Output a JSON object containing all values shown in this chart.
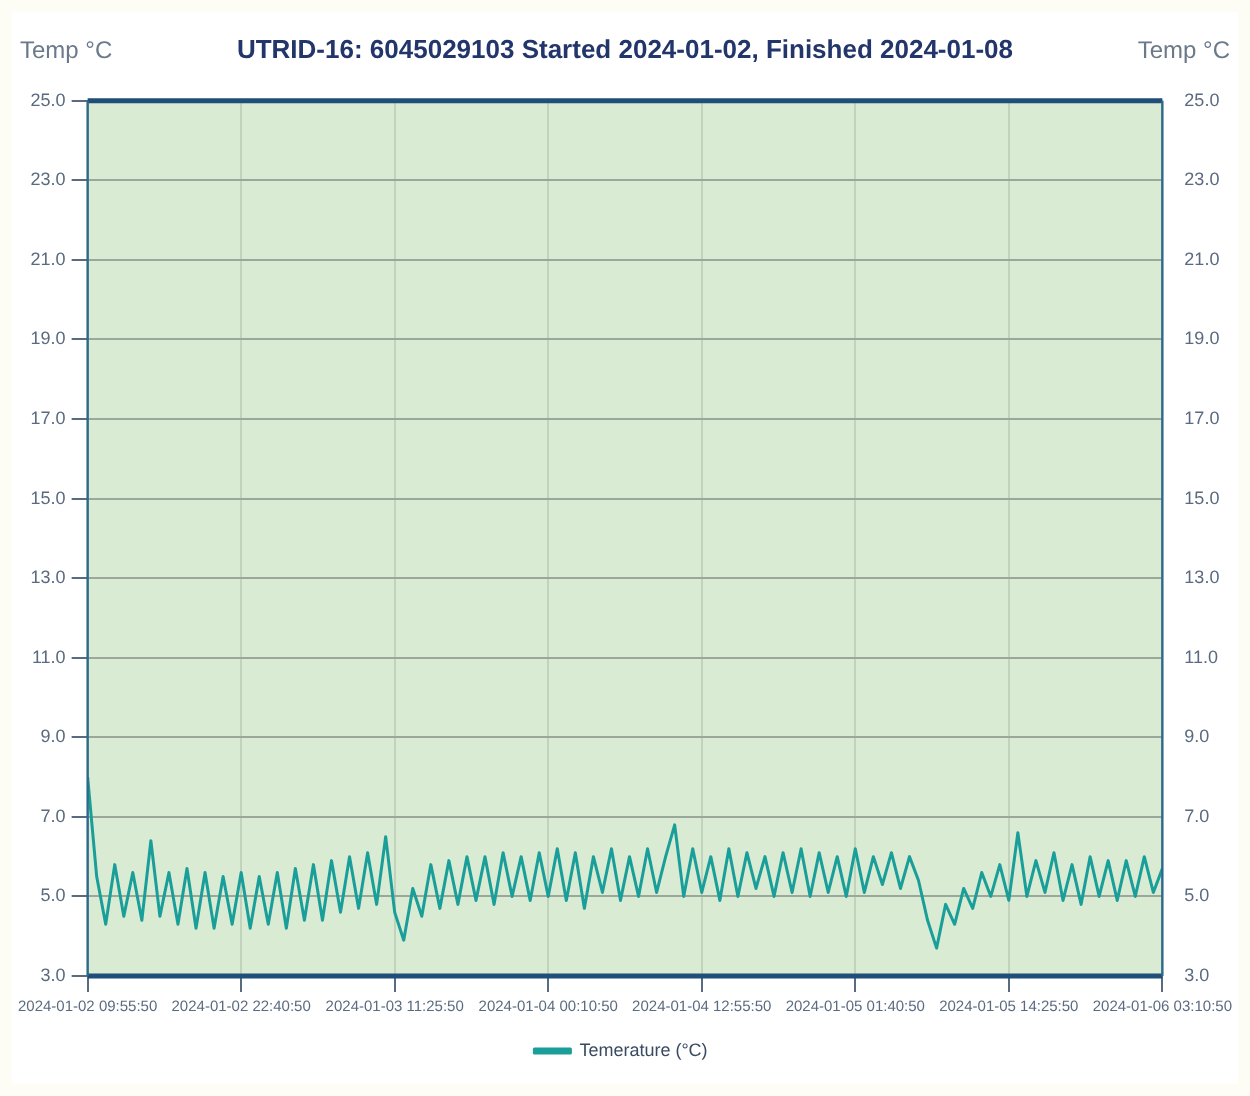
{
  "chart_data": {
    "type": "line",
    "title": "UTRID-16: 6045029103 Started 2024-01-02, Finished 2024-01-08",
    "ylabel": "Temp °C",
    "y2label": "Temp °C",
    "x": [
      "2024-01-02T09:55:50",
      "2024-01-02T10:40:50",
      "2024-01-02T11:25:50",
      "2024-01-02T12:10:50",
      "2024-01-02T12:55:50",
      "2024-01-02T13:40:50",
      "2024-01-02T14:25:50",
      "2024-01-02T15:10:50",
      "2024-01-02T15:55:50",
      "2024-01-02T16:40:50",
      "2024-01-02T17:25:50",
      "2024-01-02T18:10:50",
      "2024-01-02T18:55:50",
      "2024-01-02T19:40:50",
      "2024-01-02T20:25:50",
      "2024-01-02T21:10:50",
      "2024-01-02T21:55:50",
      "2024-01-02T22:40:50",
      "2024-01-02T23:25:50",
      "2024-01-03T00:10:50",
      "2024-01-03T00:55:50",
      "2024-01-03T01:40:50",
      "2024-01-03T02:25:50",
      "2024-01-03T03:10:50",
      "2024-01-03T03:55:50",
      "2024-01-03T04:40:50",
      "2024-01-03T05:25:50",
      "2024-01-03T06:10:50",
      "2024-01-03T06:55:50",
      "2024-01-03T07:40:50",
      "2024-01-03T08:25:50",
      "2024-01-03T09:10:50",
      "2024-01-03T09:55:50",
      "2024-01-03T10:40:50",
      "2024-01-03T11:25:50",
      "2024-01-03T12:10:50",
      "2024-01-03T12:55:50",
      "2024-01-03T13:40:50",
      "2024-01-03T14:25:50",
      "2024-01-03T15:10:50",
      "2024-01-03T15:55:50",
      "2024-01-03T16:40:50",
      "2024-01-03T17:25:50",
      "2024-01-03T18:10:50",
      "2024-01-03T18:55:50",
      "2024-01-03T19:40:50",
      "2024-01-03T20:25:50",
      "2024-01-03T21:10:50",
      "2024-01-03T21:55:50",
      "2024-01-03T22:40:50",
      "2024-01-03T23:25:50",
      "2024-01-04T00:10:50",
      "2024-01-04T00:55:50",
      "2024-01-04T01:40:50",
      "2024-01-04T02:25:50",
      "2024-01-04T03:10:50",
      "2024-01-04T03:55:50",
      "2024-01-04T04:40:50",
      "2024-01-04T05:25:50",
      "2024-01-04T06:10:50",
      "2024-01-04T06:55:50",
      "2024-01-04T07:40:50",
      "2024-01-04T08:25:50",
      "2024-01-04T09:10:50",
      "2024-01-04T09:55:50",
      "2024-01-04T10:40:50",
      "2024-01-04T11:25:50",
      "2024-01-04T12:10:50",
      "2024-01-04T12:55:50",
      "2024-01-04T13:40:50",
      "2024-01-04T14:25:50",
      "2024-01-04T15:10:50",
      "2024-01-04T15:55:50",
      "2024-01-04T16:40:50",
      "2024-01-04T17:25:50",
      "2024-01-04T18:10:50",
      "2024-01-04T18:55:50",
      "2024-01-04T19:40:50",
      "2024-01-04T20:25:50",
      "2024-01-04T21:10:50",
      "2024-01-04T21:55:50",
      "2024-01-04T22:40:50",
      "2024-01-04T23:25:50",
      "2024-01-05T00:10:50",
      "2024-01-05T00:55:50",
      "2024-01-05T01:40:50",
      "2024-01-05T02:25:50",
      "2024-01-05T03:10:50",
      "2024-01-05T03:55:50",
      "2024-01-05T04:40:50",
      "2024-01-05T05:25:50",
      "2024-01-05T06:10:50",
      "2024-01-05T06:55:50",
      "2024-01-05T07:40:50",
      "2024-01-05T08:25:50",
      "2024-01-05T09:10:50",
      "2024-01-05T09:55:50",
      "2024-01-05T10:40:50",
      "2024-01-05T11:25:50",
      "2024-01-05T12:10:50",
      "2024-01-05T12:55:50",
      "2024-01-05T13:40:50",
      "2024-01-05T14:25:50",
      "2024-01-05T15:10:50",
      "2024-01-05T15:55:50",
      "2024-01-05T16:40:50",
      "2024-01-05T17:25:50",
      "2024-01-05T18:10:50",
      "2024-01-05T18:55:50",
      "2024-01-05T19:40:50",
      "2024-01-05T20:25:50",
      "2024-01-05T21:10:50",
      "2024-01-05T21:55:50",
      "2024-01-05T22:40:50",
      "2024-01-05T23:25:50",
      "2024-01-06T00:10:50",
      "2024-01-06T00:55:50",
      "2024-01-06T01:40:50",
      "2024-01-06T02:25:50",
      "2024-01-06T03:10:50"
    ],
    "series": [
      {
        "name": "Temerature (°C)",
        "color": "#1a9e9a",
        "values": [
          8.0,
          5.5,
          4.3,
          5.8,
          4.5,
          5.6,
          4.4,
          6.4,
          4.5,
          5.6,
          4.3,
          5.7,
          4.2,
          5.6,
          4.2,
          5.5,
          4.3,
          5.6,
          4.2,
          5.5,
          4.3,
          5.6,
          4.2,
          5.7,
          4.4,
          5.8,
          4.4,
          5.9,
          4.6,
          6.0,
          4.7,
          6.1,
          4.8,
          6.5,
          4.6,
          3.9,
          5.2,
          4.5,
          5.8,
          4.7,
          5.9,
          4.8,
          6.0,
          4.9,
          6.0,
          4.8,
          6.1,
          5.0,
          6.0,
          4.9,
          6.1,
          5.0,
          6.2,
          4.9,
          6.1,
          4.7,
          6.0,
          5.1,
          6.2,
          4.9,
          6.0,
          5.0,
          6.2,
          5.1,
          6.0,
          6.8,
          5.0,
          6.2,
          5.1,
          6.0,
          4.9,
          6.2,
          5.0,
          6.1,
          5.2,
          6.0,
          5.0,
          6.1,
          5.1,
          6.2,
          5.0,
          6.1,
          5.1,
          6.0,
          5.0,
          6.2,
          5.1,
          6.0,
          5.3,
          6.1,
          5.2,
          6.0,
          5.4,
          4.4,
          3.7,
          4.8,
          4.3,
          5.2,
          4.7,
          5.6,
          5.0,
          5.8,
          4.9,
          6.6,
          5.0,
          5.9,
          5.1,
          6.1,
          4.9,
          5.8,
          4.8,
          6.0,
          5.0,
          5.9,
          4.9,
          5.9,
          5.0,
          6.0,
          5.1,
          5.7
        ]
      }
    ],
    "xlim": [
      "2024-01-02T09:55:50",
      "2024-01-06T03:10:50"
    ],
    "xticks": [
      {
        "value": "2024-01-02T09:55:50",
        "label": "2024-01-02 09:55:50"
      },
      {
        "value": "2024-01-02T22:40:50",
        "label": "2024-01-02 22:40:50"
      },
      {
        "value": "2024-01-03T11:25:50",
        "label": "2024-01-03 11:25:50"
      },
      {
        "value": "2024-01-04T00:10:50",
        "label": "2024-01-04 00:10:50"
      },
      {
        "value": "2024-01-04T12:55:50",
        "label": "2024-01-04 12:55:50"
      },
      {
        "value": "2024-01-05T01:40:50",
        "label": "2024-01-05 01:40:50"
      },
      {
        "value": "2024-01-05T14:25:50",
        "label": "2024-01-05 14:25:50"
      },
      {
        "value": "2024-01-06T03:10:50",
        "label": "2024-01-06 03:10:50"
      }
    ],
    "ylim": [
      3,
      25
    ],
    "yticks": [
      {
        "value": 3,
        "label": "3.0"
      },
      {
        "value": 5,
        "label": "5.0"
      },
      {
        "value": 7,
        "label": "7.0"
      },
      {
        "value": 9,
        "label": "9.0"
      },
      {
        "value": 11,
        "label": "11.0"
      },
      {
        "value": 13,
        "label": "13.0"
      },
      {
        "value": 15,
        "label": "15.0"
      },
      {
        "value": 17,
        "label": "17.0"
      },
      {
        "value": 19,
        "label": "19.0"
      },
      {
        "value": 21,
        "label": "21.0"
      },
      {
        "value": 23,
        "label": "23.0"
      },
      {
        "value": 25,
        "label": "25.0"
      }
    ],
    "y2lim": [
      3,
      25
    ],
    "y2ticks": [
      {
        "value": 3,
        "label": "3.0"
      },
      {
        "value": 5,
        "label": "5.0"
      },
      {
        "value": 7,
        "label": "7.0"
      },
      {
        "value": 9,
        "label": "9.0"
      },
      {
        "value": 11,
        "label": "11.0"
      },
      {
        "value": 13,
        "label": "13.0"
      },
      {
        "value": 15,
        "label": "15.0"
      },
      {
        "value": 17,
        "label": "17.0"
      },
      {
        "value": 19,
        "label": "19.0"
      },
      {
        "value": 21,
        "label": "21.0"
      },
      {
        "value": 23,
        "label": "23.0"
      },
      {
        "value": 25,
        "label": "25.0"
      }
    ],
    "grid": true,
    "legend": "bottom",
    "marker": "none",
    "line_style": "solid"
  }
}
